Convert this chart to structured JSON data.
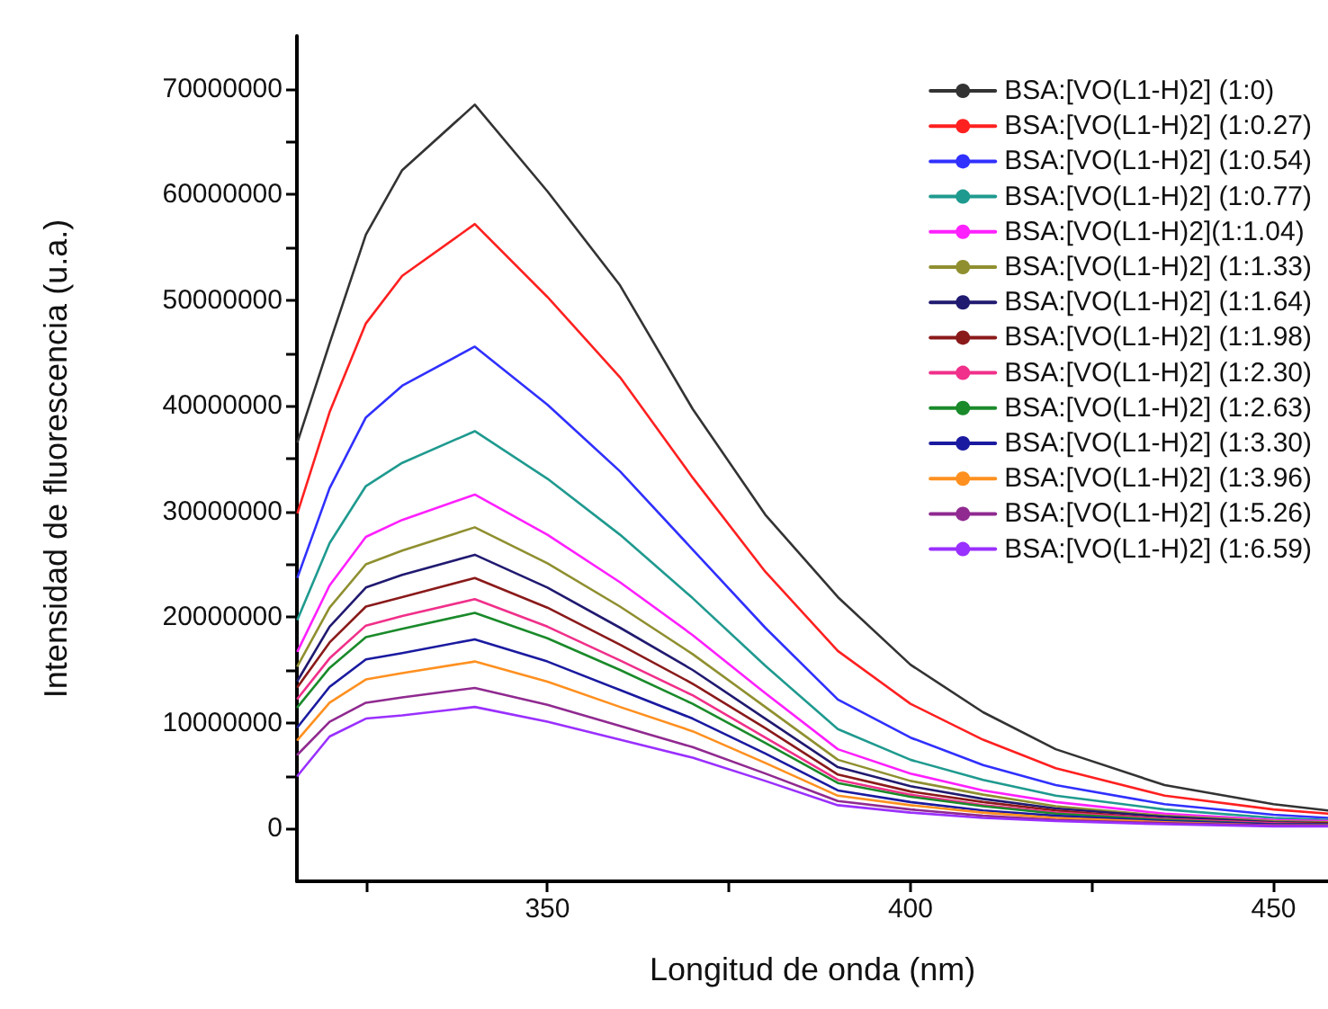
{
  "chart_data": {
    "type": "line",
    "xlabel": "Longitud de onda (nm)",
    "ylabel": "Intensidad de fluorescencia (u.a.)",
    "x": [
      315.6,
      320,
      325,
      330,
      340,
      350,
      360,
      370,
      380,
      390,
      400,
      410,
      420,
      435,
      450,
      457.5
    ],
    "xlim": [
      315.5,
      457.5
    ],
    "xticks": [
      {
        "value": 325,
        "label": null
      },
      350,
      {
        "value": 375,
        "label": null
      },
      400,
      {
        "value": 425,
        "label": null
      },
      450
    ],
    "ylim": [
      -5000000,
      75000000
    ],
    "yticks": [
      0,
      {
        "value": 5000000,
        "label": null
      },
      10000000,
      {
        "value": 15000000,
        "label": null
      },
      20000000,
      {
        "value": 25000000,
        "label": null
      },
      30000000,
      {
        "value": 35000000,
        "label": null
      },
      40000000,
      {
        "value": 45000000,
        "label": null
      },
      50000000,
      {
        "value": 55000000,
        "label": null
      },
      60000000,
      {
        "value": 65000000,
        "label": null
      },
      70000000
    ],
    "grid": false,
    "legend": "top right",
    "marker": "none",
    "series": [
      {
        "name": "BSA:[VO(L1-H)2] (1:0)",
        "color": "#333333",
        "values": [
          36600000,
          45900000,
          56200000,
          62300000,
          68500000,
          60300000,
          51400000,
          39700000,
          29700000,
          21900000,
          15500000,
          11000000,
          7500000,
          4100000,
          2300000,
          1700000
        ]
      },
      {
        "name": "BSA:[VO(L1-H)2] (1:0.27)",
        "color": "#ff2020",
        "values": [
          29900000,
          39400000,
          47800000,
          52300000,
          57200000,
          50300000,
          42700000,
          33200000,
          24300000,
          16800000,
          11800000,
          8400000,
          5700000,
          3100000,
          1800000,
          1400000
        ]
      },
      {
        "name": "BSA:[VO(L1-H)2] (1:0.54)",
        "color": "#3030ff",
        "values": [
          23800000,
          32200000,
          38900000,
          41900000,
          45600000,
          40100000,
          33800000,
          26400000,
          19000000,
          12200000,
          8600000,
          6000000,
          4100000,
          2300000,
          1300000,
          1000000
        ]
      },
      {
        "name": "BSA:[VO(L1-H)2] (1:0.77)",
        "color": "#1f9a8f",
        "values": [
          19800000,
          27000000,
          32400000,
          34600000,
          37600000,
          33100000,
          27800000,
          21800000,
          15400000,
          9400000,
          6500000,
          4600000,
          3100000,
          1800000,
          1000000,
          800000
        ]
      },
      {
        "name": "BSA:[VO(L1-H)2](1:1.04)",
        "color": "#ff20ff",
        "values": [
          16800000,
          23000000,
          27600000,
          29200000,
          31600000,
          27800000,
          23300000,
          18300000,
          12800000,
          7500000,
          5200000,
          3600000,
          2500000,
          1400000,
          800000,
          700000
        ]
      },
      {
        "name": "BSA:[VO(L1-H)2] (1:1.33)",
        "color": "#8f8f30",
        "values": [
          15400000,
          20900000,
          25000000,
          26300000,
          28500000,
          25100000,
          21000000,
          16500000,
          11500000,
          6500000,
          4500000,
          3200000,
          2100000,
          1200000,
          700000,
          600000
        ]
      },
      {
        "name": "BSA:[VO(L1-H)2] (1:1.64)",
        "color": "#201a70",
        "values": [
          14000000,
          19100000,
          22800000,
          24000000,
          25900000,
          22800000,
          19000000,
          15000000,
          10400000,
          5800000,
          4000000,
          2800000,
          1900000,
          1100000,
          600000,
          500000
        ]
      },
      {
        "name": "BSA:[VO(L1-H)2] (1:1.98)",
        "color": "#8a1a1a",
        "values": [
          13400000,
          17600000,
          21000000,
          21900000,
          23700000,
          20900000,
          17400000,
          13700000,
          9500000,
          5100000,
          3500000,
          2500000,
          1700000,
          900000,
          500000,
          500000
        ]
      },
      {
        "name": "BSA:[VO(L1-H)2] (1:2.30)",
        "color": "#f0308a",
        "values": [
          12300000,
          16100000,
          19200000,
          20100000,
          21700000,
          19100000,
          15900000,
          12600000,
          8600000,
          4600000,
          3200000,
          2200000,
          1500000,
          900000,
          500000,
          400000
        ]
      },
      {
        "name": "BSA:[VO(L1-H)2] (1:2.63)",
        "color": "#1a8a2a",
        "values": [
          11500000,
          15200000,
          18100000,
          18900000,
          20400000,
          18000000,
          15000000,
          11800000,
          8100000,
          4300000,
          3000000,
          2100000,
          1400000,
          800000,
          400000,
          400000
        ]
      },
      {
        "name": "BSA:[VO(L1-H)2] (1:3.30)",
        "color": "#1a1aa0",
        "values": [
          9600000,
          13400000,
          16000000,
          16600000,
          17900000,
          15800000,
          13100000,
          10400000,
          7100000,
          3600000,
          2500000,
          1700000,
          1200000,
          700000,
          400000,
          400000
        ]
      },
      {
        "name": "BSA:[VO(L1-H)2] (1:3.96)",
        "color": "#ff9020",
        "values": [
          8400000,
          11900000,
          14100000,
          14700000,
          15800000,
          13900000,
          11500000,
          9200000,
          6200000,
          3100000,
          2200000,
          1500000,
          1000000,
          600000,
          300000,
          300000
        ]
      },
      {
        "name": "BSA:[VO(L1-H)2] (1:5.26)",
        "color": "#902a90",
        "values": [
          7000000,
          10100000,
          11900000,
          12400000,
          13300000,
          11700000,
          9700000,
          7700000,
          5200000,
          2600000,
          1800000,
          1200000,
          800000,
          500000,
          300000,
          250000
        ]
      },
      {
        "name": "BSA:[VO(L1-H)2] (1:6.59)",
        "color": "#9a30ff",
        "values": [
          5000000,
          8700000,
          10400000,
          10700000,
          11500000,
          10100000,
          8400000,
          6700000,
          4500000,
          2200000,
          1500000,
          1000000,
          700000,
          400000,
          200000,
          200000
        ]
      }
    ]
  }
}
